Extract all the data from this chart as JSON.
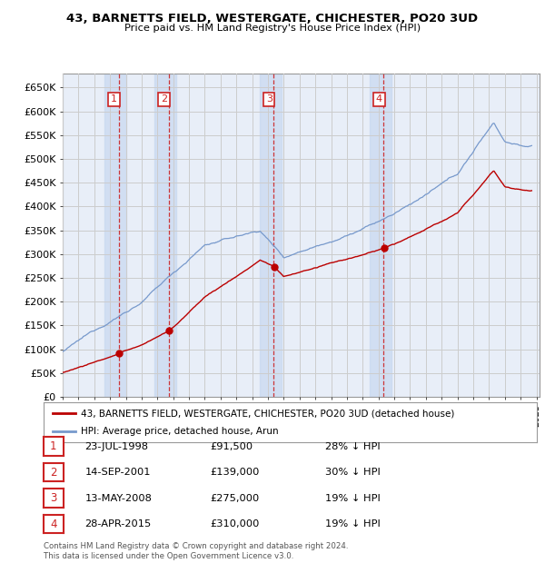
{
  "title": "43, BARNETTS FIELD, WESTERGATE, CHICHESTER, PO20 3UD",
  "subtitle": "Price paid vs. HM Land Registry's House Price Index (HPI)",
  "ylim": [
    0,
    680000
  ],
  "yticks": [
    0,
    50000,
    100000,
    150000,
    200000,
    250000,
    300000,
    350000,
    400000,
    450000,
    500000,
    550000,
    600000,
    650000
  ],
  "ytick_labels": [
    "£0",
    "£50K",
    "£100K",
    "£150K",
    "£200K",
    "£250K",
    "£300K",
    "£350K",
    "£400K",
    "£450K",
    "£500K",
    "£550K",
    "£600K",
    "£650K"
  ],
  "background_color": "#ffffff",
  "plot_bg_color": "#e8eef8",
  "grid_color": "#cccccc",
  "transactions": [
    {
      "num": 1,
      "date": "23-JUL-1998",
      "price": 91500,
      "year": 1998.55,
      "label": "28% ↓ HPI"
    },
    {
      "num": 2,
      "date": "14-SEP-2001",
      "price": 139000,
      "year": 2001.71,
      "label": "30% ↓ HPI"
    },
    {
      "num": 3,
      "date": "13-MAY-2008",
      "price": 275000,
      "year": 2008.37,
      "label": "19% ↓ HPI"
    },
    {
      "num": 4,
      "date": "28-APR-2015",
      "price": 310000,
      "year": 2015.33,
      "label": "19% ↓ HPI"
    }
  ],
  "red_line_color": "#bb0000",
  "blue_line_color": "#7799cc",
  "vline_color": "#cc2222",
  "legend_label_red": "43, BARNETTS FIELD, WESTERGATE, CHICHESTER, PO20 3UD (detached house)",
  "legend_label_blue": "HPI: Average price, detached house, Arun",
  "footer": "Contains HM Land Registry data © Crown copyright and database right 2024.\nThis data is licensed under the Open Government Licence v3.0.",
  "xlim_start": 1995.3,
  "xlim_end": 2025.2,
  "span_color": "#c8d8f0",
  "span_alpha": 0.7
}
